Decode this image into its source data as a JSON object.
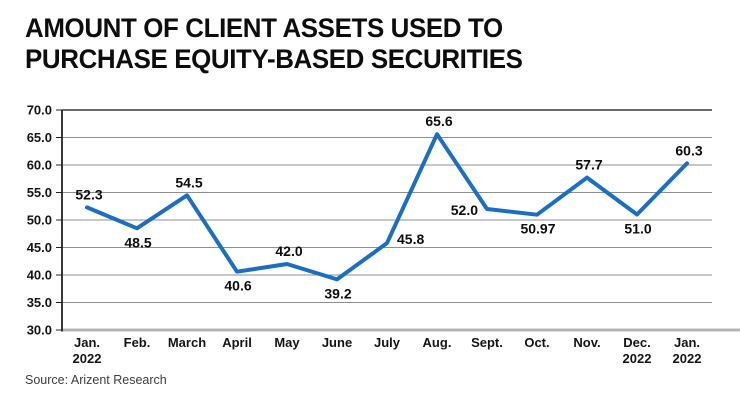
{
  "page": {
    "title": "AMOUNT OF CLIENT ASSETS USED TO PURCHASE EQUITY-BASED SECURITIES",
    "source": "Source: Arizent Research"
  },
  "chart_data": {
    "type": "line",
    "title": "AMOUNT OF CLIENT ASSETS USED TO PURCHASE EQUITY-BASED SECURITIES",
    "categories": [
      "Jan. 2022",
      "Feb.",
      "March",
      "April",
      "May",
      "June",
      "July",
      "Aug.",
      "Sept.",
      "Oct.",
      "Nov.",
      "Dec. 2022",
      "Jan. 2022"
    ],
    "values": [
      52.3,
      48.5,
      54.5,
      40.6,
      42.0,
      39.2,
      45.8,
      65.6,
      52.0,
      50.97,
      57.7,
      51.0,
      60.3
    ],
    "point_labels": [
      "52.3",
      "48.5",
      "54.5",
      "40.6",
      "42.0",
      "39.2",
      "45.8",
      "65.6",
      "52.0",
      "50.97",
      "57.7",
      "51.0",
      "60.3"
    ],
    "label_placement": [
      "above",
      "below",
      "above",
      "below",
      "above",
      "below",
      "right",
      "above",
      "left",
      "below",
      "above",
      "below",
      "above"
    ],
    "ylim": [
      30.0,
      70.0
    ],
    "ytick_step": 5,
    "ytick_labels": [
      "70.0",
      "65.0",
      "60.0",
      "55.0",
      "50.0",
      "45.0",
      "40.0",
      "35.0",
      "30.0"
    ],
    "grid": "horizontal",
    "legend": "none",
    "xlabel": "",
    "ylabel": "",
    "source": "Source: Arizent Research",
    "colors": {
      "line": "#1a6fc4",
      "gridline": "#8f8f8f",
      "top_border": "#3d3d3d",
      "bottom_border": "#b3b3b3",
      "axis": "#222222",
      "text": "#0d0d0d"
    }
  }
}
